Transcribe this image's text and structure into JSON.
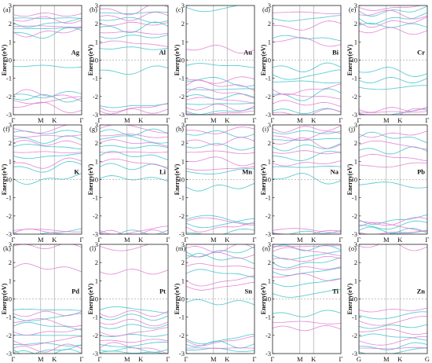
{
  "chart_data": [
    {
      "panel": "(a)",
      "element": "Ag",
      "type": "line",
      "ylabel": "Energy(eV)",
      "ylim": [
        -3,
        3
      ],
      "yticks": [
        -3,
        -2,
        -1,
        0,
        1,
        2,
        3
      ],
      "xticks": [
        "Γ",
        "M",
        "K",
        "Γ"
      ],
      "fermi_level": 0,
      "series": [
        {
          "color": "#40c4cc",
          "levels": [
            2.3,
            2.05,
            1.75,
            1.5,
            -0.35,
            -1.9,
            -2.1
          ]
        },
        {
          "color": "#e070d0",
          "levels": [
            2.5,
            2.2,
            1.85,
            1.55,
            -1.95,
            -2.2,
            -2.6
          ]
        }
      ]
    },
    {
      "panel": "(b)",
      "element": "Al",
      "type": "line",
      "ylabel": "Energy(eV)",
      "ylim": [
        -3,
        3
      ],
      "yticks": [
        -3,
        -2,
        -1,
        0,
        1,
        2,
        3
      ],
      "xticks": [
        "Γ",
        "M",
        "K",
        "Γ"
      ],
      "fermi_level": 0,
      "series": [
        {
          "color": "#40c4cc",
          "levels": [
            2.6,
            2.2,
            1.8,
            1.3,
            0.65,
            -0.55,
            -2.5
          ]
        },
        {
          "color": "#e070d0",
          "levels": [
            2.8,
            2.4,
            2.0,
            1.5,
            0.9,
            -2.6,
            -2.8
          ]
        }
      ]
    },
    {
      "panel": "(c)",
      "element": "Au",
      "type": "line",
      "ylabel": "Energy(eV)",
      "ylim": [
        -3,
        3
      ],
      "yticks": [
        -3,
        -2,
        -1,
        0,
        1,
        2,
        3
      ],
      "xticks": [
        "Γ",
        "M",
        "K",
        "Γ"
      ],
      "fermi_level": 0,
      "series": [
        {
          "color": "#40c4cc",
          "levels": [
            2.9,
            -0.3,
            -1.2,
            -1.6,
            -2.0,
            -2.4,
            -2.8
          ]
        },
        {
          "color": "#e070d0",
          "levels": [
            0.6,
            -1.1,
            -1.4,
            -1.8,
            -2.2,
            -2.6,
            -2.9
          ]
        }
      ]
    },
    {
      "panel": "(d)",
      "element": "Bi",
      "type": "line",
      "ylabel": "Energy(eV)",
      "ylim": [
        -3,
        3
      ],
      "yticks": [
        -3,
        -2,
        -1,
        0,
        1,
        2,
        3
      ],
      "xticks": [
        "Γ",
        "M",
        "K",
        "Γ"
      ],
      "fermi_level": 0,
      "series": [
        {
          "color": "#40c4cc",
          "levels": [
            2.3,
            1.2,
            -0.4,
            -0.8,
            -1.2,
            -1.9,
            -2.8
          ]
        },
        {
          "color": "#e070d0",
          "levels": [
            2.6,
            1.9,
            1.0,
            -1.6,
            -2.0,
            -2.4,
            -2.9
          ]
        }
      ]
    },
    {
      "panel": "(e)",
      "element": "Cr",
      "type": "line",
      "ylabel": "Energy(eV)",
      "ylim": [
        -3,
        3
      ],
      "yticks": [
        -3,
        -2,
        -1,
        0,
        1,
        2,
        3
      ],
      "xticks": [
        "Γ",
        "M",
        "K",
        "Γ"
      ],
      "fermi_level": 0,
      "series": [
        {
          "color": "#40c4cc",
          "levels": [
            2.7,
            2.3,
            1.9,
            -0.65,
            -1.1,
            -1.5,
            -2.9
          ]
        },
        {
          "color": "#e070d0",
          "levels": [
            2.9,
            2.5,
            2.1,
            1.6,
            -2.7,
            -2.85,
            -2.95
          ]
        }
      ]
    },
    {
      "panel": "(f)",
      "element": "K",
      "type": "line",
      "ylabel": "Energy(eV)",
      "ylim": [
        -3,
        3
      ],
      "yticks": [
        -3,
        -2,
        -1,
        0,
        1,
        2,
        3
      ],
      "xticks": [
        "Γ",
        "M",
        "K",
        "Γ"
      ],
      "fermi_level": 0,
      "series": [
        {
          "color": "#40c4cc",
          "levels": [
            2.6,
            2.2,
            1.8,
            1.3,
            0.7,
            0.05,
            -2.9
          ]
        },
        {
          "color": "#e070d0",
          "levels": [
            2.8,
            2.4,
            2.0,
            1.5,
            0.9,
            -2.8,
            -2.95
          ]
        }
      ]
    },
    {
      "panel": "(g)",
      "element": "Li",
      "type": "line",
      "ylabel": "Energy(eV)",
      "ylim": [
        -3,
        3
      ],
      "yticks": [
        -3,
        -2,
        -1,
        0,
        1,
        2,
        3
      ],
      "xticks": [
        "Γ",
        "M",
        "K",
        "Γ"
      ],
      "fermi_level": 0,
      "series": [
        {
          "color": "#40c4cc",
          "levels": [
            2.6,
            2.2,
            1.8,
            1.3,
            0.7,
            0.05,
            -2.9
          ]
        },
        {
          "color": "#e070d0",
          "levels": [
            2.8,
            2.4,
            2.0,
            1.5,
            0.9,
            -2.8,
            -2.95
          ]
        }
      ]
    },
    {
      "panel": "(h)",
      "element": "Mn",
      "type": "line",
      "ylabel": "Energy(eV)",
      "ylim": [
        -3,
        3
      ],
      "yticks": [
        -3,
        -2,
        -1,
        0,
        1,
        2,
        3
      ],
      "xticks": [
        "Γ",
        "M",
        "K",
        "Γ"
      ],
      "fermi_level": 0,
      "series": [
        {
          "color": "#40c4cc",
          "levels": [
            2.5,
            1.8,
            0.45,
            -0.4,
            -2.2,
            -2.4,
            -2.9
          ]
        },
        {
          "color": "#e070d0",
          "levels": [
            2.7,
            2.1,
            1.5,
            1.0,
            0.6,
            -2.3,
            -2.6
          ]
        }
      ]
    },
    {
      "panel": "(i)",
      "element": "Na",
      "type": "line",
      "ylabel": "Energy(eV)",
      "ylim": [
        -3,
        3
      ],
      "yticks": [
        -3,
        -2,
        -1,
        0,
        1,
        2,
        3
      ],
      "xticks": [
        "Γ",
        "M",
        "K",
        "Γ"
      ],
      "fermi_level": 0,
      "series": [
        {
          "color": "#40c4cc",
          "levels": [
            2.6,
            2.2,
            1.8,
            1.3,
            0.7,
            0.05,
            -2.9
          ]
        },
        {
          "color": "#e070d0",
          "levels": [
            2.8,
            2.4,
            2.0,
            1.5,
            0.9,
            -2.8,
            -2.95
          ]
        }
      ]
    },
    {
      "panel": "(j)",
      "element": "Pb",
      "type": "line",
      "ylabel": "Energy(eV)",
      "ylim": [
        -3,
        3
      ],
      "yticks": [
        -3,
        -2,
        -1,
        0,
        1,
        2,
        3
      ],
      "xticks": [
        "Γ",
        "M",
        "K",
        "Γ"
      ],
      "fermi_level": 0,
      "series": [
        {
          "color": "#40c4cc",
          "levels": [
            2.3,
            1.6,
            -0.3,
            -2.2,
            -2.5,
            -2.8,
            -2.95
          ]
        },
        {
          "color": "#e070d0",
          "levels": [
            2.5,
            1.9,
            1.2,
            0.8,
            -2.3,
            -2.6,
            -2.9
          ]
        }
      ]
    },
    {
      "panel": "(k)",
      "element": "Pd",
      "type": "line",
      "ylabel": "Energy(eV)",
      "ylim": [
        -3,
        3
      ],
      "yticks": [
        -3,
        -2,
        -1,
        0,
        1,
        2,
        3
      ],
      "xticks": [
        "Γ",
        "M",
        "K",
        "Γ"
      ],
      "fermi_level": 0,
      "series": [
        {
          "color": "#40c4cc",
          "levels": [
            -0.6,
            -1.0,
            -1.5,
            -2.0,
            -2.5,
            -2.8,
            -2.95
          ]
        },
        {
          "color": "#e070d0",
          "levels": [
            1.7,
            2.9,
            -0.8,
            -1.3,
            -1.8,
            -2.3,
            -2.7
          ]
        }
      ]
    },
    {
      "panel": "(l)",
      "element": "Pt",
      "type": "line",
      "ylabel": "Energy(eV)",
      "ylim": [
        -3,
        3
      ],
      "yticks": [
        -3,
        -2,
        -1,
        0,
        1,
        2,
        3
      ],
      "xticks": [
        "Γ",
        "M",
        "K",
        "Γ"
      ],
      "fermi_level": 0,
      "series": [
        {
          "color": "#40c4cc",
          "levels": [
            -0.6,
            -1.0,
            -1.5,
            -2.0,
            -2.5,
            -2.8,
            -2.95
          ]
        },
        {
          "color": "#e070d0",
          "levels": [
            1.5,
            2.9,
            -0.8,
            -1.3,
            -1.8,
            -2.3,
            -2.7
          ]
        }
      ]
    },
    {
      "panel": "(m)",
      "element": "Sn",
      "type": "line",
      "ylabel": "Energy(eV)",
      "ylim": [
        -3,
        3
      ],
      "yticks": [
        -3,
        -2,
        -1,
        0,
        1,
        2,
        3
      ],
      "xticks": [
        "Γ",
        "M",
        "K",
        "Γ"
      ],
      "fermi_level": 0,
      "series": [
        {
          "color": "#40c4cc",
          "levels": [
            2.6,
            2.2,
            1.4,
            -0.2,
            -2.2,
            -2.5,
            -2.8
          ]
        },
        {
          "color": "#e070d0",
          "levels": [
            2.8,
            2.4,
            1.8,
            1.0,
            0.7,
            -2.3,
            -2.7
          ]
        }
      ]
    },
    {
      "panel": "(n)",
      "element": "Ti",
      "type": "line",
      "ylabel": "Energy(eV)",
      "ylim": [
        -3,
        3
      ],
      "yticks": [
        -3,
        -2,
        -1,
        0,
        1,
        2,
        3
      ],
      "xticks": [
        "Γ",
        "M",
        "K",
        "Γ"
      ],
      "fermi_level": 0,
      "series": [
        {
          "color": "#40c4cc",
          "levels": [
            2.8,
            2.4,
            2.0,
            1.5,
            0.9,
            0.3,
            -0.8
          ]
        },
        {
          "color": "#e070d0",
          "levels": [
            2.9,
            2.6,
            2.2,
            1.7,
            1.2,
            -1.3,
            -1.6
          ]
        }
      ]
    },
    {
      "panel": "(o)",
      "element": "Zn",
      "type": "line",
      "ylabel": "Energy(eV)",
      "ylim": [
        -3,
        3
      ],
      "yticks": [
        -3,
        -2,
        -1,
        0,
        1,
        2,
        3
      ],
      "xticks": [
        "G",
        "M",
        "K",
        "G"
      ],
      "fermi_level": 0,
      "series": [
        {
          "color": "#40c4cc",
          "levels": [
            -0.9,
            -1.5,
            -2.1,
            -2.6,
            -2.9
          ]
        },
        {
          "color": "#e070d0",
          "levels": [
            2.9,
            -0.6,
            -1.2,
            -1.8,
            -2.3,
            -2.7
          ]
        }
      ]
    }
  ]
}
